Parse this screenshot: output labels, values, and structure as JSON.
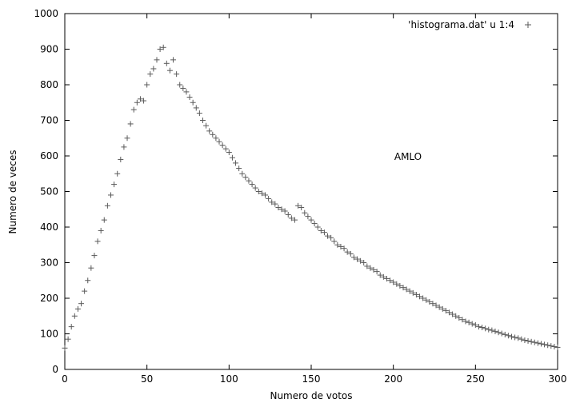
{
  "chart_data": {
    "type": "scatter",
    "xlabel": "Numero de votos",
    "ylabel": "Numero de veces",
    "xlim": [
      0,
      300
    ],
    "ylim": [
      0,
      1000
    ],
    "x_ticks": [
      0,
      50,
      100,
      150,
      200,
      250,
      300
    ],
    "y_ticks": [
      0,
      100,
      200,
      300,
      400,
      500,
      600,
      700,
      800,
      900,
      1000
    ],
    "grid": false,
    "legend_position": "top-right",
    "marker_color": "#5a5a5a",
    "series": [
      {
        "name": "'histograma.dat' u 1:4",
        "marker": "plus",
        "x": [
          0,
          2,
          4,
          6,
          8,
          10,
          12,
          14,
          16,
          18,
          20,
          22,
          24,
          26,
          28,
          30,
          32,
          34,
          36,
          38,
          40,
          42,
          44,
          46,
          48,
          50,
          52,
          54,
          56,
          58,
          60,
          62,
          64,
          66,
          68,
          70,
          72,
          74,
          76,
          78,
          80,
          82,
          84,
          86,
          88,
          90,
          92,
          94,
          96,
          98,
          100,
          102,
          104,
          106,
          108,
          110,
          112,
          114,
          116,
          118,
          120,
          122,
          124,
          126,
          128,
          130,
          132,
          134,
          136,
          138,
          140,
          142,
          144,
          146,
          148,
          150,
          152,
          154,
          156,
          158,
          160,
          162,
          164,
          166,
          168,
          170,
          172,
          174,
          176,
          178,
          180,
          182,
          184,
          186,
          188,
          190,
          192,
          194,
          196,
          198,
          200,
          202,
          204,
          206,
          208,
          210,
          212,
          214,
          216,
          218,
          220,
          222,
          224,
          226,
          228,
          230,
          232,
          234,
          236,
          238,
          240,
          242,
          244,
          246,
          248,
          250,
          252,
          254,
          256,
          258,
          260,
          262,
          264,
          266,
          268,
          270,
          272,
          274,
          276,
          278,
          280,
          282,
          284,
          286,
          288,
          290,
          292,
          294,
          296,
          298,
          300
        ],
        "y": [
          60,
          85,
          120,
          150,
          170,
          185,
          220,
          250,
          285,
          320,
          360,
          390,
          420,
          460,
          490,
          520,
          550,
          590,
          625,
          650,
          690,
          730,
          750,
          760,
          755,
          800,
          830,
          845,
          870,
          900,
          905,
          860,
          840,
          870,
          830,
          800,
          790,
          780,
          765,
          750,
          735,
          720,
          700,
          685,
          670,
          660,
          650,
          640,
          630,
          620,
          610,
          595,
          580,
          565,
          550,
          540,
          530,
          520,
          510,
          500,
          495,
          490,
          480,
          470,
          465,
          455,
          450,
          445,
          435,
          425,
          420,
          460,
          455,
          440,
          430,
          420,
          410,
          400,
          390,
          385,
          375,
          370,
          360,
          350,
          345,
          340,
          330,
          325,
          315,
          310,
          305,
          300,
          290,
          285,
          280,
          275,
          265,
          260,
          255,
          250,
          245,
          240,
          235,
          230,
          225,
          220,
          215,
          210,
          205,
          200,
          195,
          190,
          185,
          180,
          175,
          170,
          165,
          160,
          155,
          150,
          145,
          140,
          135,
          132,
          128,
          125,
          120,
          118,
          115,
          112,
          110,
          107,
          104,
          101,
          98,
          95,
          92,
          90,
          88,
          85,
          82,
          80,
          78,
          76,
          74,
          72,
          70,
          68,
          66,
          64,
          62
        ]
      }
    ],
    "annotations": [
      {
        "text": "AMLO",
        "x": 205,
        "y": 600
      }
    ]
  }
}
